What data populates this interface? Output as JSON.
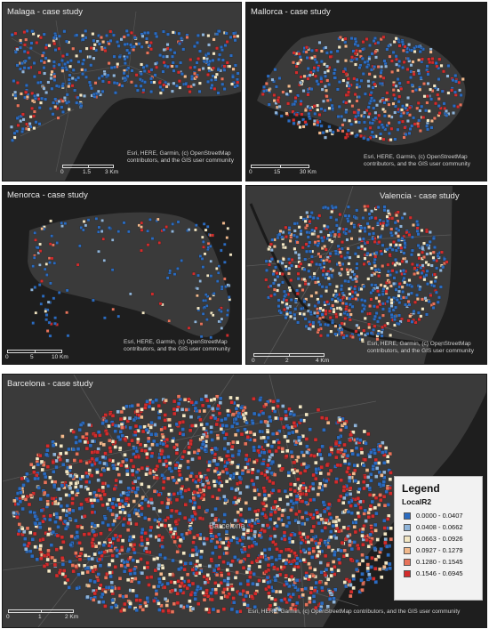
{
  "legend": {
    "title": "Legend",
    "field": "LocalR2",
    "classes": [
      {
        "label": "0.0000 - 0.0407",
        "color": "#2a6bc1"
      },
      {
        "label": "0.0408 - 0.0662",
        "color": "#8fb4d9"
      },
      {
        "label": "0.0663 - 0.0926",
        "color": "#f3e7c4"
      },
      {
        "label": "0.0927 - 0.1279",
        "color": "#f2b98c"
      },
      {
        "label": "0.1280 - 0.1545",
        "color": "#e8735a"
      },
      {
        "label": "0.1546 - 0.6945",
        "color": "#d42b2b"
      }
    ]
  },
  "panels": {
    "malaga": {
      "title": "Malaga - case study",
      "attribution": "Esri, HERE, Garmin, (c) OpenStreetMap contributors, and the GIS user community",
      "scale": [
        "0",
        "1.5",
        "3 Km"
      ]
    },
    "mallorca": {
      "title": "Mallorca - case study",
      "attribution": "Esri, HERE, Garmin, (c) OpenStreetMap contributors, and the GIS user community",
      "scale": [
        "0",
        "15",
        "30 Km"
      ]
    },
    "menorca": {
      "title": "Menorca - case study",
      "attribution": "Esri, HERE, Garmin, (c) OpenStreetMap contributors, and the GIS user community",
      "scale": [
        "0",
        "5",
        "10 Km"
      ]
    },
    "valencia": {
      "title": "Valencia - case study",
      "attribution": "Esri, HERE, Garmin, (c) OpenStreetMap contributors, and the GIS user community",
      "scale": [
        "0",
        "2",
        "4 Km"
      ]
    },
    "barcelona": {
      "title": "Barcelona - case study",
      "attribution": "Esri, HERE, Garmin, (c) OpenStreetMap contributors, and the GIS user community",
      "scale": [
        "0",
        "1",
        "2 Km"
      ],
      "city_label": "Barcelona"
    }
  }
}
